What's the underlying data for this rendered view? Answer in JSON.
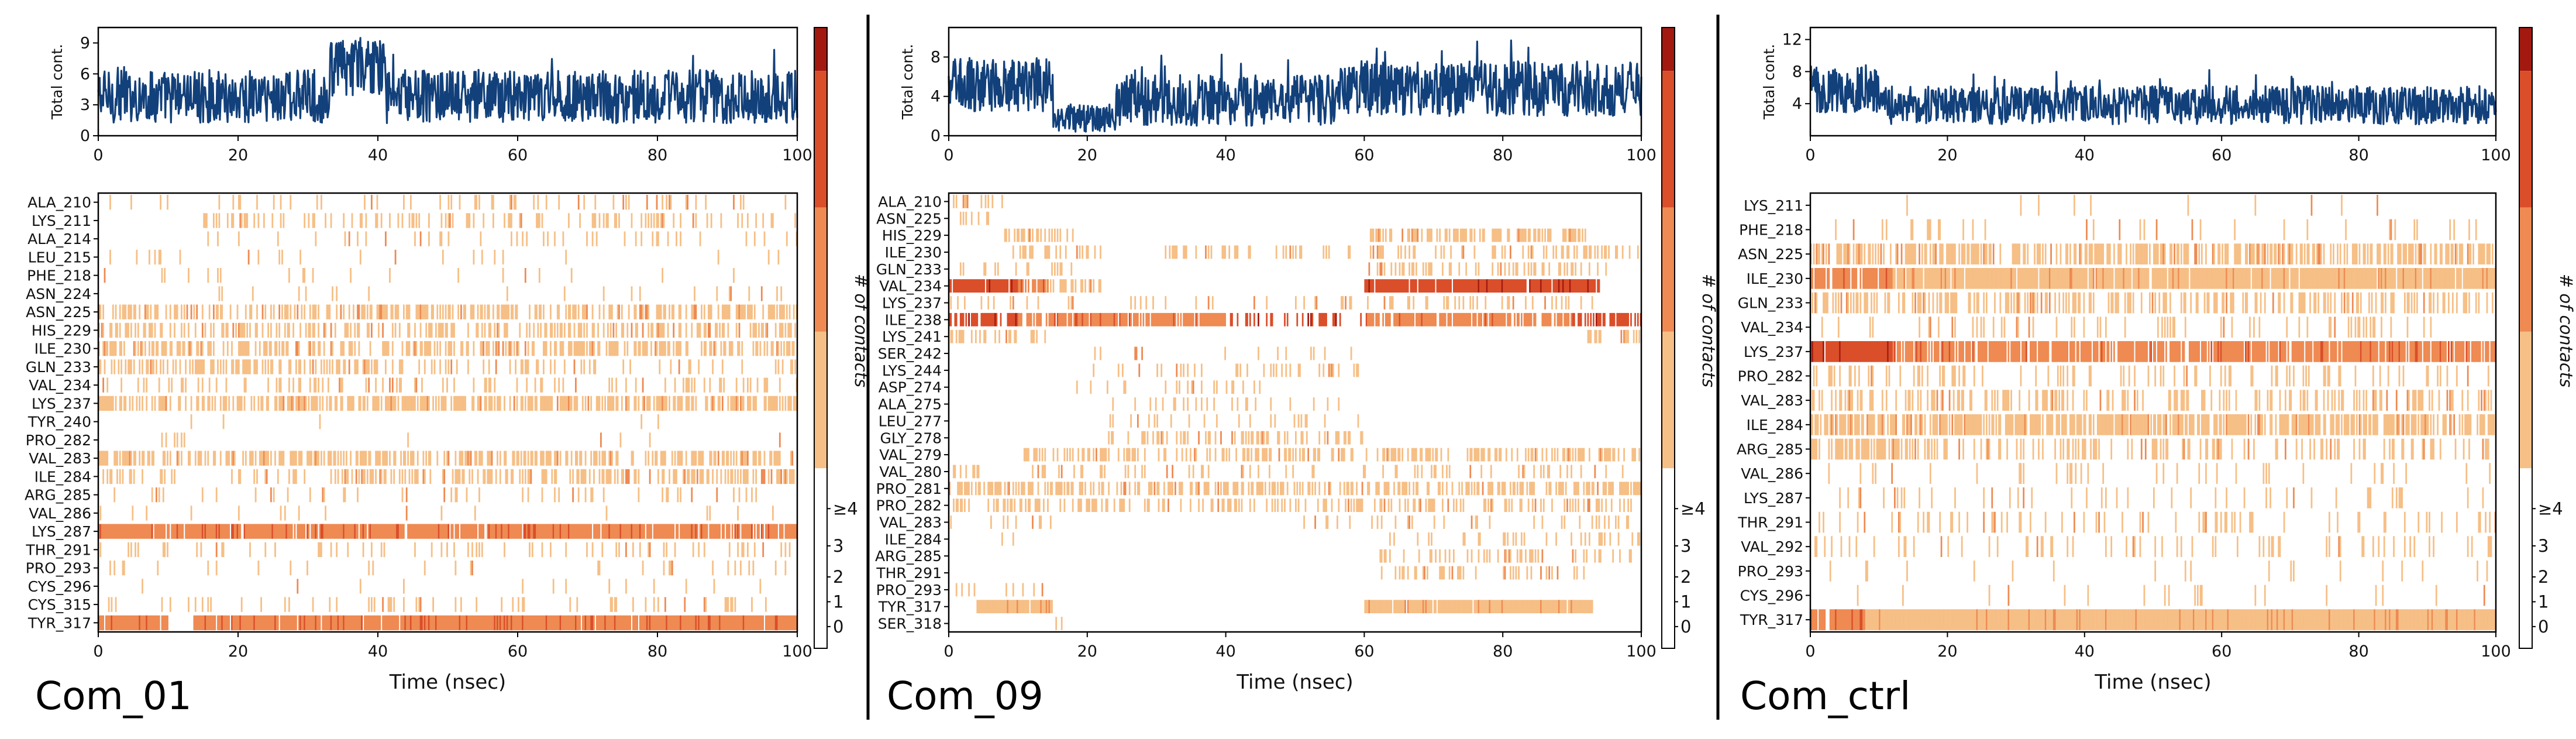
{
  "figure": {
    "colors": {
      "line": "#12407a",
      "contact_levels": [
        "#ffffff",
        "#f6bf86",
        "#ee8a52",
        "#da4e2a",
        "#a3190f"
      ],
      "frame": "#000000"
    }
  },
  "chart_data": [
    {
      "type": "heatmap",
      "panel_label": "Com_01",
      "xlabel": "Time (nsec)",
      "xlim": [
        0,
        100
      ],
      "xticks": [
        "0",
        "20",
        "40",
        "60",
        "80",
        "100"
      ],
      "total_contacts": {
        "ylabel": "Total cont.",
        "yticks": [
          "0",
          "3",
          "6",
          "9"
        ],
        "ylim": [
          0,
          10.5
        ],
        "segments": [
          {
            "t0": 0,
            "t1": 33,
            "mean": 3.8,
            "amp": 2.6
          },
          {
            "t0": 33,
            "t1": 41,
            "mean": 6.6,
            "amp": 2.8
          },
          {
            "t0": 41,
            "t1": 100,
            "mean": 3.8,
            "amp": 2.6
          }
        ]
      },
      "colorbar": {
        "label": "# of contacts",
        "ticks": [
          "0",
          "1",
          "2",
          "3",
          "≥4"
        ]
      },
      "residues": [
        {
          "name": "ALA_210",
          "segments": [
            [
              0,
              100,
              0.12,
              1
            ]
          ]
        },
        {
          "name": "LYS_211",
          "segments": [
            [
              15,
              100,
              0.25,
              1
            ]
          ]
        },
        {
          "name": "ALA_214",
          "segments": [
            [
              15,
              100,
              0.12,
              1
            ]
          ]
        },
        {
          "name": "LEU_215",
          "segments": [
            [
              0,
              100,
              0.05,
              1
            ]
          ]
        },
        {
          "name": "PHE_218",
          "segments": [
            [
              0,
              100,
              0.04,
              1
            ]
          ]
        },
        {
          "name": "ASN_224",
          "segments": [
            [
              15,
              100,
              0.05,
              1
            ]
          ]
        },
        {
          "name": "ASN_225",
          "segments": [
            [
              0,
              100,
              0.5,
              1
            ]
          ]
        },
        {
          "name": "HIS_229",
          "segments": [
            [
              0,
              100,
              0.35,
              1
            ]
          ]
        },
        {
          "name": "ILE_230",
          "segments": [
            [
              0,
              100,
              0.45,
              1
            ]
          ]
        },
        {
          "name": "GLN_233",
          "segments": [
            [
              0,
              40,
              0.55,
              1
            ],
            [
              40,
              100,
              0.2,
              1
            ]
          ]
        },
        {
          "name": "VAL_234",
          "segments": [
            [
              0,
              100,
              0.2,
              1
            ]
          ]
        },
        {
          "name": "LYS_237",
          "segments": [
            [
              0,
              100,
              0.6,
              1
            ]
          ]
        },
        {
          "name": "TYR_240",
          "segments": [
            [
              0,
              100,
              0.02,
              1
            ]
          ]
        },
        {
          "name": "PRO_282",
          "segments": [
            [
              9,
              13,
              0.3,
              1
            ],
            [
              13,
              100,
              0.02,
              1
            ]
          ]
        },
        {
          "name": "VAL_283",
          "segments": [
            [
              0,
              100,
              0.5,
              1
            ]
          ]
        },
        {
          "name": "ILE_284",
          "segments": [
            [
              0,
              30,
              0.2,
              1
            ],
            [
              33,
              100,
              0.45,
              1
            ]
          ]
        },
        {
          "name": "ARG_285",
          "segments": [
            [
              0,
              100,
              0.1,
              1
            ]
          ]
        },
        {
          "name": "VAL_286",
          "segments": [
            [
              0,
              100,
              0.03,
              1
            ]
          ]
        },
        {
          "name": "LYS_287",
          "segments": [
            [
              0,
              100,
              0.93,
              2
            ]
          ]
        },
        {
          "name": "THR_291",
          "segments": [
            [
              0,
              100,
              0.12,
              1
            ]
          ]
        },
        {
          "name": "PRO_293",
          "segments": [
            [
              0,
              100,
              0.06,
              1
            ]
          ]
        },
        {
          "name": "CYS_296",
          "segments": [
            [
              0,
              100,
              0.04,
              1
            ]
          ]
        },
        {
          "name": "CYS_315",
          "segments": [
            [
              0,
              100,
              0.12,
              1
            ]
          ]
        },
        {
          "name": "TYR_317",
          "segments": [
            [
              0,
              10,
              0.95,
              2
            ],
            [
              10,
              14,
              0.05,
              2
            ],
            [
              14,
              100,
              0.97,
              2
            ]
          ]
        }
      ]
    },
    {
      "type": "heatmap",
      "panel_label": "Com_09",
      "xlabel": "Time (nsec)",
      "xlim": [
        0,
        100
      ],
      "xticks": [
        "0",
        "20",
        "40",
        "60",
        "80",
        "100"
      ],
      "total_contacts": {
        "ylabel": "Total cont.",
        "yticks": [
          "0",
          "4",
          "8"
        ],
        "ylim": [
          0,
          11
        ],
        "segments": [
          {
            "t0": 0,
            "t1": 15,
            "mean": 5.2,
            "amp": 2.8
          },
          {
            "t0": 15,
            "t1": 24,
            "mean": 1.8,
            "amp": 1.4
          },
          {
            "t0": 24,
            "t1": 56,
            "mean": 3.6,
            "amp": 2.6
          },
          {
            "t0": 56,
            "t1": 100,
            "mean": 4.8,
            "amp": 2.8
          }
        ]
      },
      "colorbar": {
        "label": "# of contacts",
        "ticks": [
          "0",
          "1",
          "2",
          "3",
          "≥4"
        ]
      },
      "residues": [
        {
          "name": "ALA_210",
          "segments": [
            [
              0,
              8,
              0.3,
              1
            ]
          ]
        },
        {
          "name": "ASN_225",
          "segments": [
            [
              0,
              6,
              0.2,
              1
            ]
          ]
        },
        {
          "name": "HIS_229",
          "segments": [
            [
              8,
              18,
              0.4,
              1
            ],
            [
              60,
              92,
              0.5,
              1
            ]
          ]
        },
        {
          "name": "ILE_230",
          "segments": [
            [
              8,
              22,
              0.3,
              1
            ],
            [
              30,
              58,
              0.2,
              1
            ],
            [
              60,
              100,
              0.3,
              1
            ]
          ]
        },
        {
          "name": "GLN_233",
          "segments": [
            [
              0,
              18,
              0.2,
              1
            ],
            [
              60,
              95,
              0.25,
              1
            ]
          ]
        },
        {
          "name": "VAL_234",
          "segments": [
            [
              0,
              10,
              0.95,
              3
            ],
            [
              10,
              14,
              0.9,
              2
            ],
            [
              14,
              22,
              0.4,
              1
            ],
            [
              60,
              94,
              0.95,
              3
            ]
          ]
        },
        {
          "name": "LYS_237",
          "segments": [
            [
              0,
              18,
              0.15,
              1
            ],
            [
              25,
              60,
              0.1,
              1
            ],
            [
              60,
              94,
              0.2,
              1
            ]
          ]
        },
        {
          "name": "ILE_238",
          "segments": [
            [
              0,
              100,
              0.85,
              2
            ],
            [
              0,
              10,
              0.6,
              3
            ],
            [
              40,
              60,
              0.35,
              3
            ],
            [
              90,
              100,
              0.6,
              3
            ]
          ]
        },
        {
          "name": "LYS_241",
          "segments": [
            [
              0,
              14,
              0.35,
              1
            ],
            [
              92,
              100,
              0.4,
              1
            ]
          ]
        },
        {
          "name": "SER_242",
          "segments": [
            [
              20,
              60,
              0.08,
              1
            ]
          ]
        },
        {
          "name": "LYS_244",
          "segments": [
            [
              18,
              60,
              0.18,
              1
            ]
          ]
        },
        {
          "name": "ASP_274",
          "segments": [
            [
              18,
              45,
              0.12,
              1
            ]
          ]
        },
        {
          "name": "ALA_275",
          "segments": [
            [
              20,
              58,
              0.12,
              1
            ]
          ]
        },
        {
          "name": "LEU_277",
          "segments": [
            [
              20,
              60,
              0.1,
              1
            ]
          ]
        },
        {
          "name": "GLY_278",
          "segments": [
            [
              20,
              60,
              0.35,
              1
            ]
          ]
        },
        {
          "name": "VAL_279",
          "segments": [
            [
              10,
              58,
              0.35,
              1
            ],
            [
              58,
              100,
              0.45,
              1
            ]
          ]
        },
        {
          "name": "VAL_280",
          "segments": [
            [
              0,
              100,
              0.15,
              1
            ]
          ]
        },
        {
          "name": "PRO_281",
          "segments": [
            [
              0,
              100,
              0.5,
              1
            ]
          ]
        },
        {
          "name": "PRO_282",
          "segments": [
            [
              0,
              100,
              0.35,
              1
            ]
          ]
        },
        {
          "name": "VAL_283",
          "segments": [
            [
              0,
              15,
              0.15,
              1
            ],
            [
              50,
              100,
              0.15,
              1
            ]
          ]
        },
        {
          "name": "ILE_284",
          "segments": [
            [
              0,
              12,
              0.1,
              1
            ],
            [
              62,
              100,
              0.15,
              1
            ]
          ]
        },
        {
          "name": "ARG_285",
          "segments": [
            [
              62,
              100,
              0.25,
              1
            ]
          ]
        },
        {
          "name": "THR_291",
          "segments": [
            [
              62,
              92,
              0.2,
              1
            ]
          ]
        },
        {
          "name": "PRO_293",
          "segments": [
            [
              0,
              14,
              0.1,
              1
            ]
          ]
        },
        {
          "name": "TYR_317",
          "segments": [
            [
              4,
              15,
              0.97,
              1
            ],
            [
              60,
              93,
              0.97,
              1
            ]
          ]
        },
        {
          "name": "SER_318",
          "segments": [
            [
              15,
              18,
              0.25,
              1
            ]
          ]
        }
      ]
    },
    {
      "type": "heatmap",
      "panel_label": "Com_ctrl",
      "xlabel": "Time (nsec)",
      "xlim": [
        0,
        100
      ],
      "xticks": [
        "0",
        "20",
        "40",
        "60",
        "80",
        "100"
      ],
      "total_contacts": {
        "ylabel": "Total cont.",
        "yticks": [
          "4",
          "8",
          "12"
        ],
        "ylim": [
          0,
          13.5
        ],
        "segments": [
          {
            "t0": 0,
            "t1": 11,
            "mean": 5.8,
            "amp": 3.0
          },
          {
            "t0": 11,
            "t1": 100,
            "mean": 3.8,
            "amp": 2.4
          }
        ]
      },
      "colorbar": {
        "label": "# of contacts",
        "ticks": [
          "0",
          "1",
          "2",
          "3",
          "≥4"
        ]
      },
      "residues": [
        {
          "name": "LYS_211",
          "segments": [
            [
              0,
              100,
              0.03,
              1
            ]
          ]
        },
        {
          "name": "PHE_218",
          "segments": [
            [
              0,
              100,
              0.06,
              1
            ]
          ]
        },
        {
          "name": "ASN_225",
          "segments": [
            [
              0,
              100,
              0.55,
              1
            ]
          ]
        },
        {
          "name": "ILE_230",
          "segments": [
            [
              0,
              12,
              0.9,
              2
            ],
            [
              12,
              100,
              0.95,
              1
            ]
          ]
        },
        {
          "name": "GLN_233",
          "segments": [
            [
              0,
              100,
              0.4,
              1
            ]
          ]
        },
        {
          "name": "VAL_234",
          "segments": [
            [
              0,
              100,
              0.15,
              1
            ]
          ]
        },
        {
          "name": "LYS_237",
          "segments": [
            [
              0,
              12,
              0.95,
              3
            ],
            [
              12,
              100,
              0.85,
              2
            ]
          ]
        },
        {
          "name": "PRO_282",
          "segments": [
            [
              0,
              100,
              0.2,
              1
            ]
          ]
        },
        {
          "name": "VAL_283",
          "segments": [
            [
              0,
              100,
              0.35,
              1
            ]
          ]
        },
        {
          "name": "ILE_284",
          "segments": [
            [
              0,
              100,
              0.7,
              1
            ]
          ]
        },
        {
          "name": "ARG_285",
          "segments": [
            [
              0,
              15,
              0.6,
              1
            ],
            [
              15,
              100,
              0.25,
              1
            ]
          ]
        },
        {
          "name": "VAL_286",
          "segments": [
            [
              0,
              100,
              0.08,
              1
            ]
          ]
        },
        {
          "name": "LYS_287",
          "segments": [
            [
              0,
              100,
              0.1,
              1
            ]
          ]
        },
        {
          "name": "THR_291",
          "segments": [
            [
              0,
              100,
              0.15,
              1
            ]
          ]
        },
        {
          "name": "VAL_292",
          "segments": [
            [
              0,
              100,
              0.12,
              1
            ]
          ]
        },
        {
          "name": "PRO_293",
          "segments": [
            [
              0,
              100,
              0.05,
              1
            ]
          ]
        },
        {
          "name": "CYS_296",
          "segments": [
            [
              0,
              100,
              0.04,
              1
            ]
          ]
        },
        {
          "name": "TYR_317",
          "segments": [
            [
              0,
              8,
              0.9,
              2
            ],
            [
              8,
              100,
              1.0,
              1
            ]
          ]
        }
      ]
    }
  ]
}
